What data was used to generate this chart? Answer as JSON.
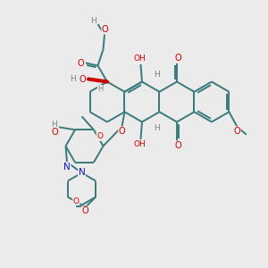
{
  "bg_color": "#ebebeb",
  "bond_color": "#3a7a7a",
  "bond_width": 1.4,
  "atom_colors": {
    "O": "#cc0000",
    "N": "#1111cc",
    "H": "#808080"
  },
  "figsize": [
    3.0,
    3.0
  ],
  "dpi": 100
}
